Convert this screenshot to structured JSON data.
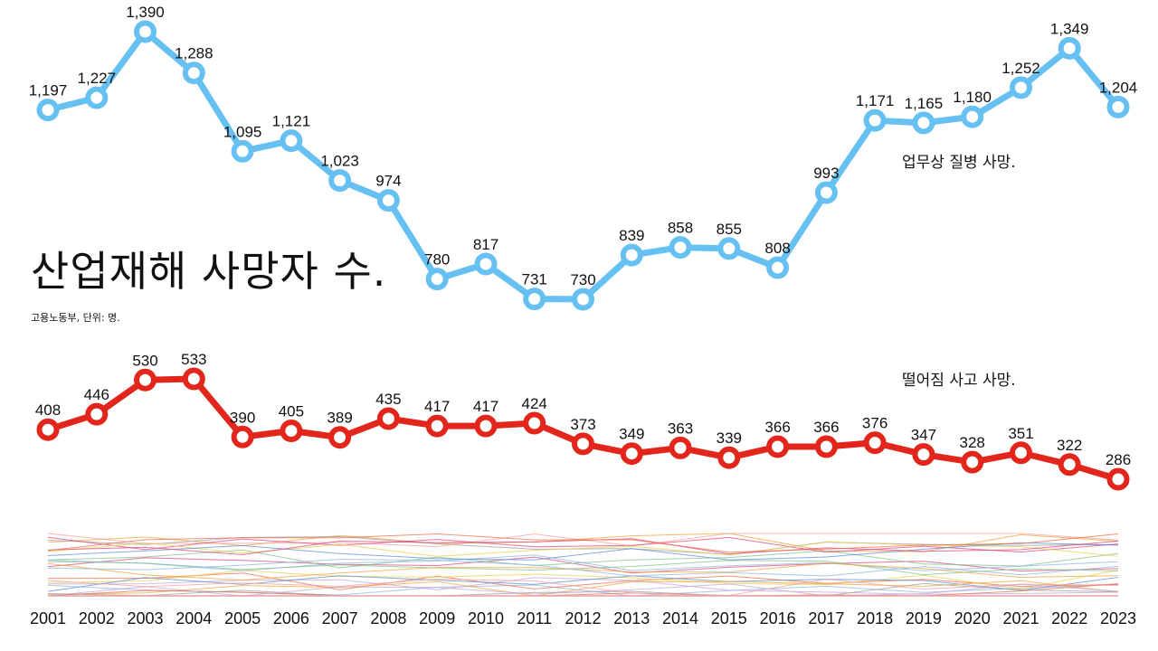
{
  "title": "산업재해 사망자 수.",
  "source": "고용노동부, 단위: 명.",
  "chart_data": [
    {
      "type": "line",
      "x": [
        2001,
        2002,
        2003,
        2004,
        2005,
        2006,
        2007,
        2008,
        2009,
        2010,
        2011,
        2012,
        2013,
        2014,
        2015,
        2016,
        2017,
        2018,
        2019,
        2020,
        2021,
        2022,
        2023
      ],
      "series": [
        {
          "name": "업무상 질병 사망.",
          "color": "#66c0f2",
          "values": [
            1197,
            1227,
            1390,
            1288,
            1095,
            1121,
            1023,
            974,
            780,
            817,
            731,
            730,
            839,
            858,
            855,
            808,
            993,
            1171,
            1165,
            1180,
            1252,
            1349,
            1204
          ],
          "labels": [
            "1,197",
            "1,227",
            "1,390",
            "1,288",
            "1,095",
            "1,121",
            "1,023",
            "974",
            "780",
            "817",
            "731",
            "730",
            "839",
            "858",
            "855",
            "808",
            "993",
            "1,171",
            "1,165",
            "1,180",
            "1,252",
            "1,349",
            "1,204"
          ]
        },
        {
          "name": "떨어짐 사고 사망.",
          "color": "#e3261b",
          "values": [
            408,
            446,
            530,
            533,
            390,
            405,
            389,
            435,
            417,
            417,
            424,
            373,
            349,
            363,
            339,
            366,
            366,
            376,
            347,
            328,
            351,
            322,
            286
          ],
          "labels": [
            "408",
            "446",
            "530",
            "533",
            "390",
            "405",
            "389",
            "435",
            "417",
            "417",
            "424",
            "373",
            "349",
            "363",
            "339",
            "366",
            "366",
            "376",
            "347",
            "328",
            "351",
            "322",
            "286"
          ]
        }
      ],
      "background_series_note_colors": [
        "#e0457b",
        "#f0a43a",
        "#8fb4e0",
        "#f06b4a",
        "#9e9e9e",
        "#c6a3d8",
        "#e7d24a",
        "#7fc08a",
        "#f4a0a0",
        "#5a8fd0"
      ],
      "xlabel": "",
      "ylabel": "",
      "grid": false,
      "legend": "inline"
    }
  ]
}
